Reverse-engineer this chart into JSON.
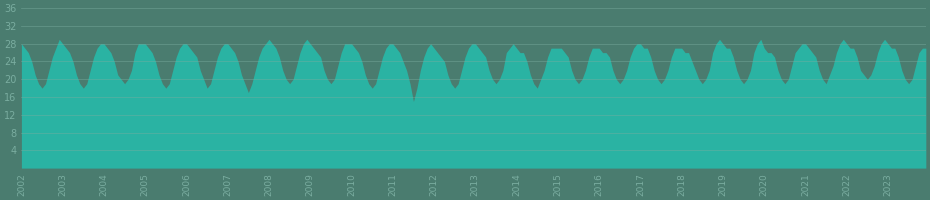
{
  "background_color": "#4a7c6f",
  "fill_color": "#2ab3a3",
  "y_min": 0,
  "y_max": 36,
  "y_ticks": [
    4,
    8,
    12,
    16,
    20,
    24,
    28,
    32,
    36
  ],
  "grid_color": "#7aada0",
  "label_color": "#7aada0",
  "start_year": 2002,
  "end_year": 2023,
  "monthly_temps": [
    28,
    27,
    26,
    24,
    21,
    19,
    18,
    19,
    22,
    25,
    27,
    29,
    28,
    27,
    26,
    24,
    21,
    19,
    18,
    19,
    22,
    25,
    27,
    28,
    28,
    27,
    26,
    24,
    21,
    20,
    19,
    20,
    22,
    26,
    28,
    28,
    28,
    27,
    26,
    24,
    21,
    19,
    18,
    19,
    22,
    25,
    27,
    28,
    28,
    27,
    26,
    25,
    22,
    20,
    18,
    19,
    22,
    25,
    27,
    28,
    28,
    27,
    26,
    24,
    21,
    19,
    17,
    19,
    22,
    25,
    27,
    28,
    29,
    28,
    27,
    25,
    22,
    20,
    19,
    20,
    23,
    26,
    28,
    29,
    28,
    27,
    26,
    25,
    22,
    20,
    19,
    20,
    23,
    26,
    28,
    28,
    28,
    27,
    26,
    24,
    21,
    19,
    18,
    19,
    22,
    25,
    27,
    28,
    28,
    27,
    26,
    24,
    22,
    19,
    15,
    18,
    22,
    25,
    27,
    28,
    27,
    26,
    25,
    24,
    21,
    19,
    18,
    19,
    22,
    25,
    27,
    28,
    28,
    27,
    26,
    25,
    22,
    20,
    19,
    20,
    22,
    26,
    27,
    28,
    27,
    26,
    26,
    24,
    21,
    19,
    18,
    20,
    22,
    25,
    27,
    27,
    27,
    27,
    26,
    25,
    22,
    20,
    19,
    20,
    22,
    25,
    27,
    27,
    27,
    26,
    26,
    25,
    22,
    20,
    19,
    20,
    22,
    25,
    27,
    28,
    28,
    27,
    27,
    25,
    22,
    20,
    19,
    20,
    22,
    25,
    27,
    27,
    27,
    26,
    26,
    24,
    22,
    20,
    19,
    20,
    22,
    26,
    28,
    29,
    28,
    27,
    27,
    25,
    22,
    20,
    19,
    20,
    22,
    26,
    28,
    29,
    27,
    26,
    26,
    25,
    22,
    20,
    19,
    20,
    23,
    26,
    27,
    28,
    28,
    27,
    26,
    25,
    22,
    20,
    19,
    21,
    23,
    26,
    28,
    29,
    28,
    27,
    27,
    25,
    22,
    21,
    20,
    21,
    23,
    26,
    28,
    29,
    28,
    27,
    27,
    25,
    22,
    20,
    19,
    20,
    23,
    26,
    27,
    27
  ]
}
